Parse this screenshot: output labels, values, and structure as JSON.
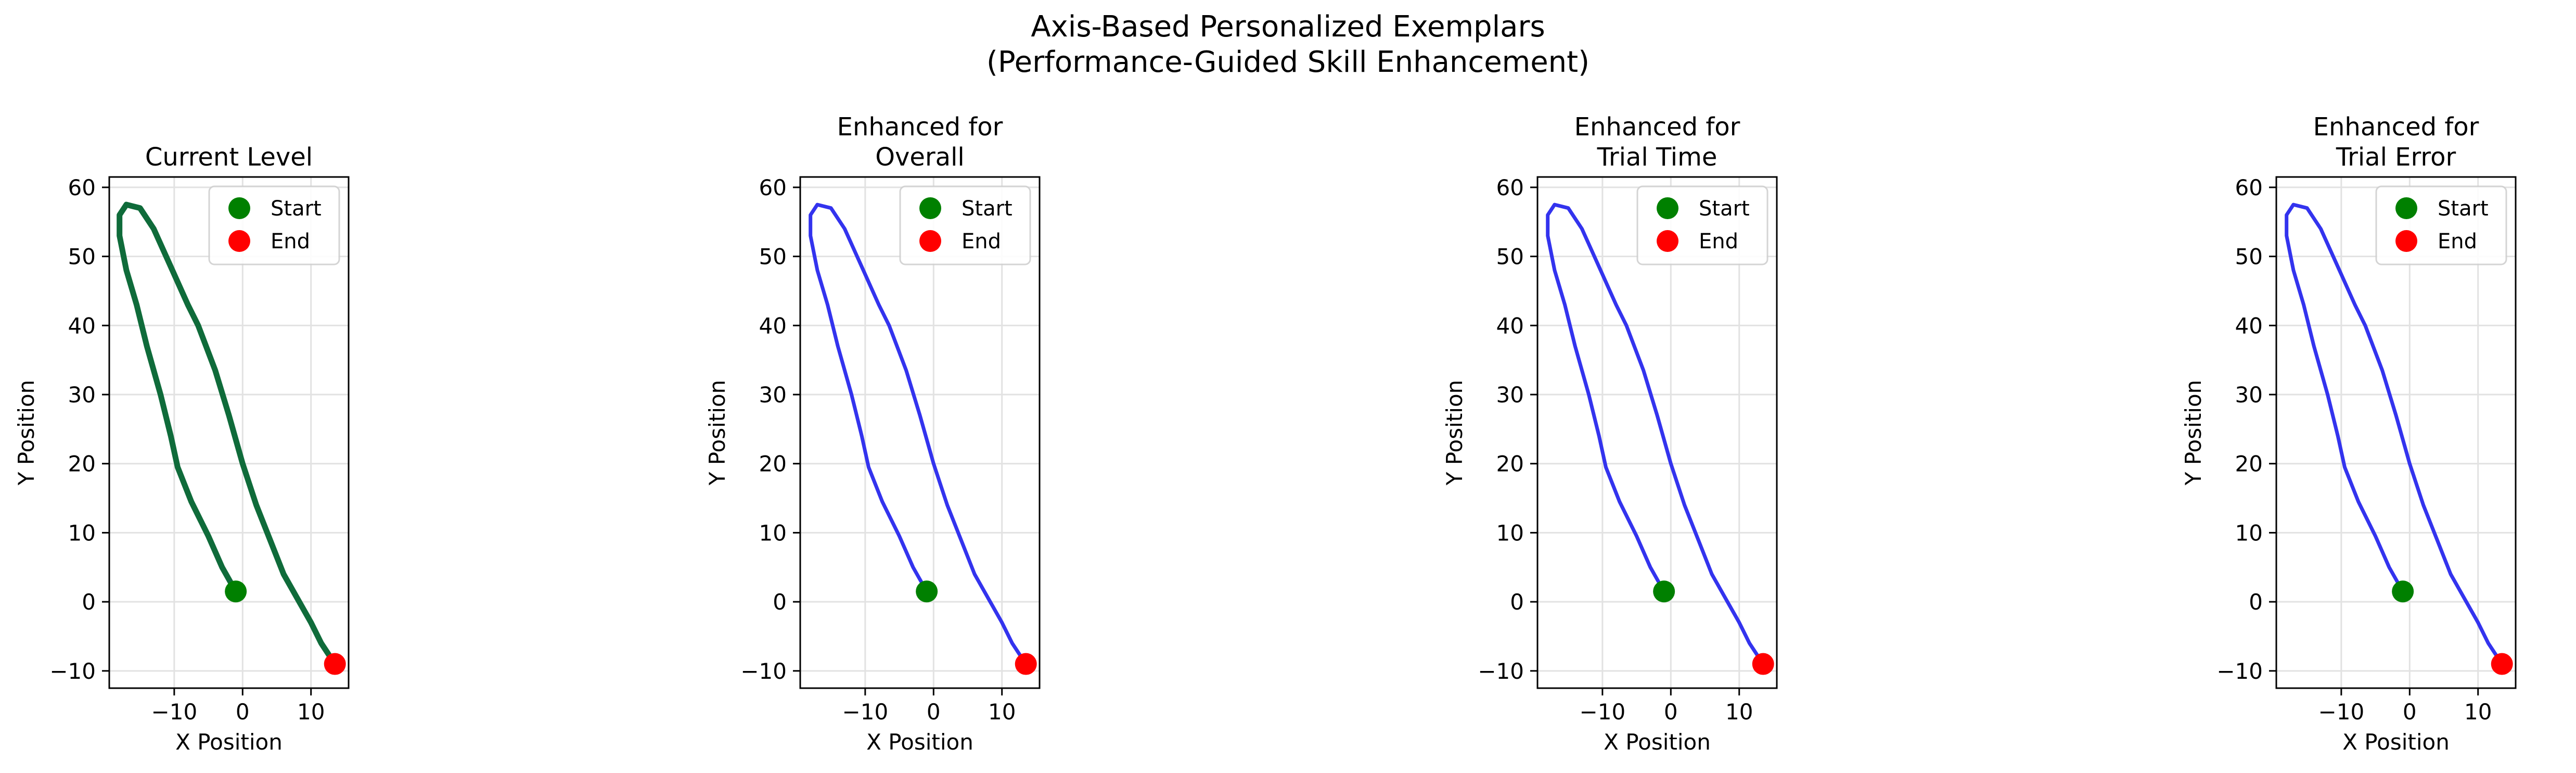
{
  "title_line1": "Axis-Based Personalized Exemplars",
  "title_line2": "(Performance-Guided Skill Enhancement)",
  "chart_data": [
    {
      "type": "line",
      "title_lines": [
        "Current Level"
      ],
      "xlabel": "X Position",
      "ylabel": "Y Position",
      "xlim": [
        -19.5,
        15.5
      ],
      "ylim": [
        -12.5,
        61.5
      ],
      "xticks": [
        -10,
        0,
        10
      ],
      "xtick_labels": [
        "−10",
        "0",
        "10"
      ],
      "yticks": [
        -10,
        0,
        10,
        20,
        30,
        40,
        50,
        60
      ],
      "ytick_labels": [
        "−10",
        "0",
        "10",
        "20",
        "30",
        "40",
        "50",
        "60"
      ],
      "grid": true,
      "legend": [
        "Start",
        "End"
      ],
      "legend_placement": "top-right",
      "line_color": "#0f6b3a",
      "start_color": "#008000",
      "end_color": "#ff0000",
      "series": [
        {
          "x": [
            -1,
            -3,
            -5,
            -7.5,
            -9.5,
            -10.5,
            -12,
            -14,
            -15.5,
            -17,
            -18,
            -18,
            -17,
            -15,
            -13,
            -10.5,
            -8,
            -6.5,
            -4,
            -2,
            0,
            2,
            4,
            6,
            8,
            10,
            11.5,
            13.5
          ],
          "y": [
            1.5,
            5,
            9.5,
            14.5,
            19.5,
            24,
            30,
            37,
            43,
            48,
            53,
            56,
            57.5,
            57,
            54,
            48.5,
            43,
            40,
            33.5,
            27,
            20,
            14,
            9,
            4,
            0.5,
            -3,
            -6,
            -9
          ]
        }
      ],
      "start": [
        -1,
        1.5
      ],
      "end": [
        13.5,
        -9
      ]
    },
    {
      "type": "line",
      "title_lines": [
        "Enhanced for",
        "Overall"
      ],
      "xlabel": "X Position",
      "ylabel": "Y Position",
      "xlim": [
        -19.5,
        15.5
      ],
      "ylim": [
        -12.5,
        61.5
      ],
      "xticks": [
        -10,
        0,
        10
      ],
      "xtick_labels": [
        "−10",
        "0",
        "10"
      ],
      "yticks": [
        -10,
        0,
        10,
        20,
        30,
        40,
        50,
        60
      ],
      "ytick_labels": [
        "−10",
        "0",
        "10",
        "20",
        "30",
        "40",
        "50",
        "60"
      ],
      "grid": true,
      "legend": [
        "Start",
        "End"
      ],
      "legend_placement": "top-right",
      "line_color": "#3333ee",
      "start_color": "#008000",
      "end_color": "#ff0000",
      "series": [
        {
          "x": [
            -1,
            -3,
            -5,
            -7.5,
            -9.5,
            -10.5,
            -12,
            -14,
            -15.5,
            -17,
            -18,
            -18,
            -17,
            -15,
            -13,
            -10.5,
            -8,
            -6.5,
            -4,
            -2,
            0,
            2,
            4,
            6,
            8,
            10,
            11.5,
            13.5
          ],
          "y": [
            1.5,
            5,
            9.5,
            14.5,
            19.5,
            24,
            30,
            37,
            43,
            48,
            53,
            56,
            57.5,
            57,
            54,
            48.5,
            43,
            40,
            33.5,
            27,
            20,
            14,
            9,
            4,
            0.5,
            -3,
            -6,
            -9
          ]
        }
      ],
      "start": [
        -1,
        1.5
      ],
      "end": [
        13.5,
        -9
      ]
    },
    {
      "type": "line",
      "title_lines": [
        "Enhanced for",
        "Trial Time"
      ],
      "xlabel": "X Position",
      "ylabel": "Y Position",
      "xlim": [
        -19.5,
        15.5
      ],
      "ylim": [
        -12.5,
        61.5
      ],
      "xticks": [
        -10,
        0,
        10
      ],
      "xtick_labels": [
        "−10",
        "0",
        "10"
      ],
      "yticks": [
        -10,
        0,
        10,
        20,
        30,
        40,
        50,
        60
      ],
      "ytick_labels": [
        "−10",
        "0",
        "10",
        "20",
        "30",
        "40",
        "50",
        "60"
      ],
      "grid": true,
      "legend": [
        "Start",
        "End"
      ],
      "legend_placement": "top-right",
      "line_color": "#3333ee",
      "start_color": "#008000",
      "end_color": "#ff0000",
      "series": [
        {
          "x": [
            -1,
            -3,
            -5,
            -7.5,
            -9.5,
            -10.5,
            -12,
            -14,
            -15.5,
            -17,
            -18,
            -18,
            -17,
            -15,
            -13,
            -10.5,
            -8,
            -6.5,
            -4,
            -2,
            0,
            2,
            4,
            6,
            8,
            10,
            11.5,
            13.5
          ],
          "y": [
            1.5,
            5,
            9.5,
            14.5,
            19.5,
            24,
            30,
            37,
            43,
            48,
            53,
            56,
            57.5,
            57,
            54,
            48.5,
            43,
            40,
            33.5,
            27,
            20,
            14,
            9,
            4,
            0.5,
            -3,
            -6,
            -9
          ]
        }
      ],
      "start": [
        -1,
        1.5
      ],
      "end": [
        13.5,
        -9
      ]
    },
    {
      "type": "line",
      "title_lines": [
        "Enhanced for",
        "Trial Error"
      ],
      "xlabel": "X Position",
      "ylabel": "Y Position",
      "xlim": [
        -19.5,
        15.5
      ],
      "ylim": [
        -12.5,
        61.5
      ],
      "xticks": [
        -10,
        0,
        10
      ],
      "xtick_labels": [
        "−10",
        "0",
        "10"
      ],
      "yticks": [
        -10,
        0,
        10,
        20,
        30,
        40,
        50,
        60
      ],
      "ytick_labels": [
        "−10",
        "0",
        "10",
        "20",
        "30",
        "40",
        "50",
        "60"
      ],
      "grid": true,
      "legend": [
        "Start",
        "End"
      ],
      "legend_placement": "top-right",
      "line_color": "#3333ee",
      "start_color": "#008000",
      "end_color": "#ff0000",
      "series": [
        {
          "x": [
            -1,
            -3,
            -5,
            -7.5,
            -9.5,
            -10.5,
            -12,
            -14,
            -15.5,
            -17,
            -18,
            -18,
            -17,
            -15,
            -13,
            -10.5,
            -8,
            -6.5,
            -4,
            -2,
            0,
            2,
            4,
            6,
            8,
            10,
            11.5,
            13.5
          ],
          "y": [
            1.5,
            5,
            9.5,
            14.5,
            19.5,
            24,
            30,
            37,
            43,
            48,
            53,
            56,
            57.5,
            57,
            54,
            48.5,
            43,
            40,
            33.5,
            27,
            20,
            14,
            9,
            4,
            0.5,
            -3,
            -6,
            -9
          ]
        }
      ],
      "start": [
        -1,
        1.5
      ],
      "end": [
        13.5,
        -9
      ]
    }
  ]
}
